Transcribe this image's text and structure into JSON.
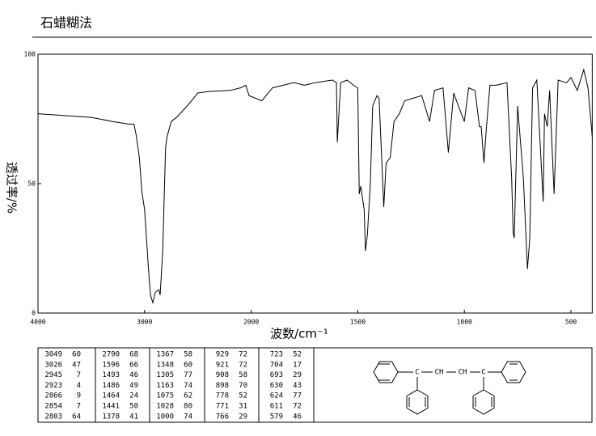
{
  "chart_data": {
    "type": "line",
    "title": "石蜡糊法",
    "x_label": "波数/cm⁻¹",
    "y_label": "透过率/%",
    "xlim": [
      4000,
      400
    ],
    "xticks": [
      4000,
      3000,
      2000,
      1500,
      1000,
      500
    ],
    "ylim": [
      0,
      100
    ],
    "yticks": [
      0,
      50,
      100
    ],
    "color": "#000000",
    "x": [
      4000,
      3500,
      3300,
      3150,
      3100,
      3080,
      3049,
      3026,
      3000,
      2965,
      2945,
      2923,
      2900,
      2866,
      2854,
      2830,
      2803,
      2790,
      2750,
      2700,
      2600,
      2500,
      2400,
      2200,
      2100,
      2050,
      2020,
      1950,
      1900,
      1800,
      1750,
      1700,
      1620,
      1600,
      1596,
      1580,
      1550,
      1520,
      1500,
      1493,
      1486,
      1470,
      1464,
      1455,
      1441,
      1430,
      1410,
      1400,
      1378,
      1367,
      1348,
      1330,
      1305,
      1280,
      1200,
      1163,
      1140,
      1100,
      1075,
      1050,
      1028,
      1000,
      980,
      950,
      929,
      921,
      908,
      898,
      880,
      850,
      800,
      778,
      771,
      766,
      750,
      723,
      704,
      693,
      680,
      660,
      630,
      624,
      611,
      600,
      579,
      560,
      520,
      500,
      470,
      440,
      420,
      400
    ],
    "values": [
      77,
      75.6,
      74,
      73,
      73,
      69,
      60,
      47,
      40,
      18,
      7,
      4,
      8,
      9,
      7,
      24,
      64,
      68,
      74,
      75.6,
      80,
      85,
      85.6,
      86,
      87,
      88,
      84,
      82,
      87,
      89,
      88,
      89,
      90,
      89,
      66,
      89,
      90,
      88,
      87,
      46,
      49,
      40,
      24,
      30,
      50,
      80,
      84,
      83,
      41,
      58,
      60,
      74,
      77,
      82,
      84,
      74,
      86,
      87,
      62,
      85,
      80,
      74,
      87,
      86,
      72,
      72,
      58,
      70,
      88,
      88,
      89,
      52,
      31,
      29,
      80,
      52,
      17,
      29,
      87,
      90,
      43,
      77,
      72,
      86,
      46,
      90,
      89,
      91,
      86,
      94,
      87,
      68
    ]
  },
  "peak_table": {
    "columns": [
      [
        [
          3049,
          60
        ],
        [
          3026,
          47
        ],
        [
          2945,
          7
        ],
        [
          2923,
          4
        ],
        [
          2866,
          9
        ],
        [
          2854,
          7
        ],
        [
          2803,
          64
        ]
      ],
      [
        [
          2790,
          68
        ],
        [
          1596,
          66
        ],
        [
          1493,
          46
        ],
        [
          1486,
          49
        ],
        [
          1464,
          24
        ],
        [
          1441,
          50
        ],
        [
          1378,
          41
        ]
      ],
      [
        [
          1367,
          58
        ],
        [
          1348,
          60
        ],
        [
          1305,
          77
        ],
        [
          1163,
          74
        ],
        [
          1075,
          62
        ],
        [
          1028,
          80
        ],
        [
          1000,
          74
        ]
      ],
      [
        [
          929,
          72
        ],
        [
          921,
          72
        ],
        [
          908,
          58
        ],
        [
          898,
          70
        ],
        [
          778,
          52
        ],
        [
          771,
          31
        ],
        [
          766,
          29
        ]
      ],
      [
        [
          723,
          52
        ],
        [
          704,
          17
        ],
        [
          693,
          29
        ],
        [
          630,
          43
        ],
        [
          624,
          77
        ],
        [
          611,
          72
        ],
        [
          579,
          46
        ]
      ]
    ]
  },
  "structure": {
    "atoms": [
      "C",
      "CH",
      "CH",
      "C"
    ]
  }
}
